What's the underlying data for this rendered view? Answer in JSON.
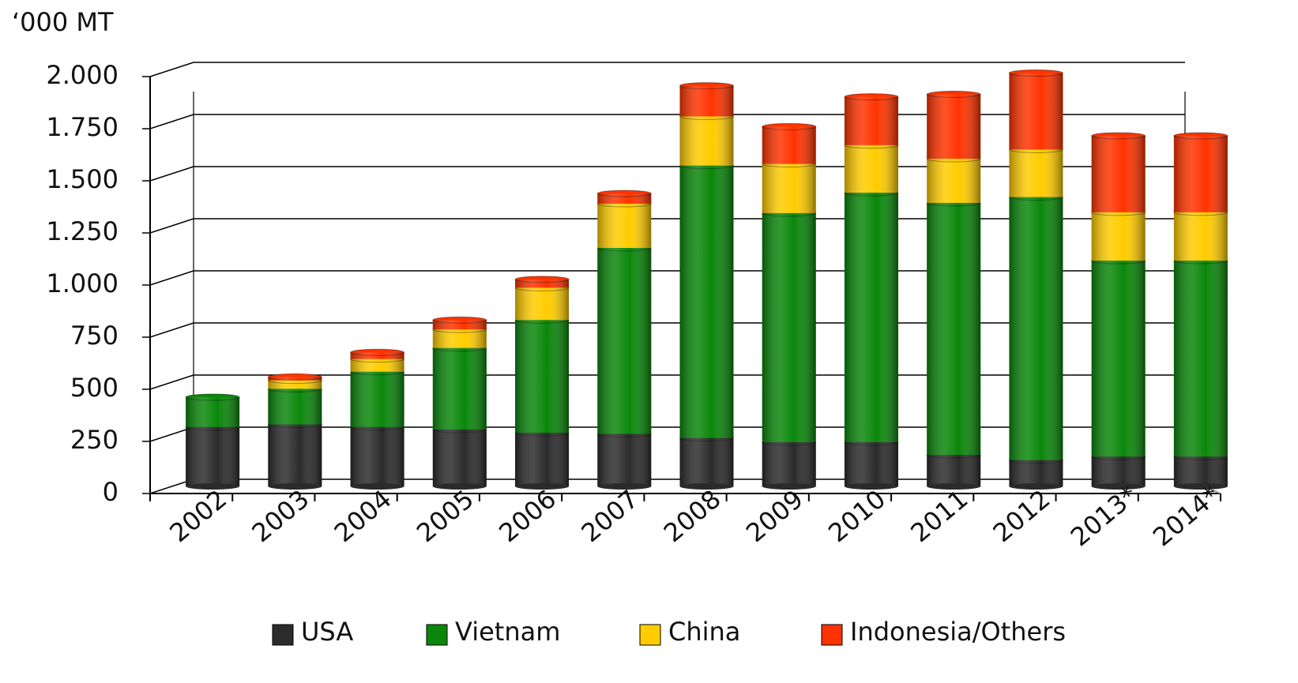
{
  "chart_data": {
    "type": "bar",
    "stacked": true,
    "title": "‘000 MT",
    "categories": [
      "2002",
      "2003",
      "2004",
      "2005",
      "2006",
      "2007",
      "2008",
      "2009",
      "2010",
      "2011",
      "2012",
      "2013*",
      "2014*"
    ],
    "series": [
      {
        "name": "USA",
        "color": "#2b2b2b",
        "values": [
          285,
          297,
          285,
          273,
          257,
          252,
          232,
          212,
          212,
          151,
          126,
          143,
          143
        ]
      },
      {
        "name": "Vietnam",
        "color": "#0a870a",
        "values": [
          143,
          171,
          265,
          391,
          541,
          892,
          1307,
          1099,
          1197,
          1209,
          1262,
          940,
          940
        ]
      },
      {
        "name": "China",
        "color": "#ffcc00",
        "values": [
          0,
          41,
          61,
          89,
          155,
          212,
          236,
          236,
          228,
          212,
          228,
          232,
          232
        ]
      },
      {
        "name": "Indonesia/Others",
        "color": "#ff3300",
        "values": [
          0,
          16,
          32,
          45,
          40,
          49,
          147,
          179,
          232,
          309,
          367,
          367,
          367
        ]
      }
    ],
    "ylim": [
      0,
      2000
    ],
    "yticks": [
      0,
      250,
      500,
      750,
      {
        "value": 1000,
        "label": "1.000"
      },
      {
        "value": 1250,
        "label": "1.250"
      },
      {
        "value": 1500,
        "label": "1.500"
      },
      {
        "value": 1750,
        "label": "1.750"
      },
      {
        "value": 2000,
        "label": "2.000"
      }
    ],
    "grid": true,
    "legend": "bottom"
  }
}
